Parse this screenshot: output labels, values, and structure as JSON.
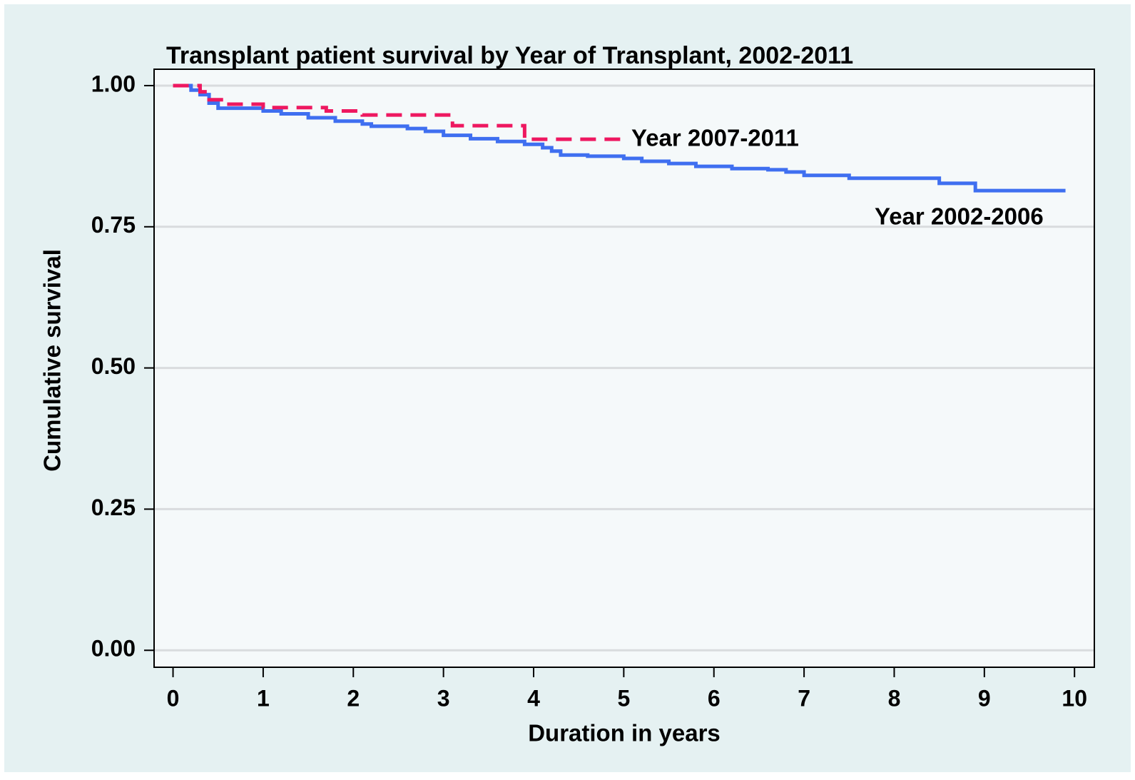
{
  "chart_data": {
    "type": "step-line",
    "title": "Transplant patient survival by Year of Transplant, 2002-2011",
    "xlabel": "Duration in years",
    "ylabel": "Cumulative survival",
    "xlim": [
      -0.21,
      10.22
    ],
    "ylim": [
      -0.03,
      1.029
    ],
    "xticks": [
      0,
      1,
      2,
      3,
      4,
      5,
      6,
      7,
      8,
      9,
      10
    ],
    "yticks": [
      {
        "value": 0,
        "label": "0.00"
      },
      {
        "value": 0.25,
        "label": "0.25"
      },
      {
        "value": 0.5,
        "label": "0.50"
      },
      {
        "value": 0.75,
        "label": "0.75"
      },
      {
        "value": 1,
        "label": "1.00"
      }
    ],
    "grid": true,
    "series": [
      {
        "name": "Year 2002-2006",
        "color": "#3f6ff0",
        "dash": false,
        "x": [
          0,
          0.2,
          0.3,
          0.4,
          0.5,
          1.0,
          1.2,
          1.5,
          1.8,
          2.1,
          2.2,
          2.6,
          2.8,
          3.0,
          3.3,
          3.6,
          3.9,
          4.1,
          4.2,
          4.3,
          4.6,
          5.0,
          5.2,
          5.5,
          5.8,
          6.2,
          6.6,
          6.8,
          7.0,
          7.5,
          8.5,
          8.9,
          9.9
        ],
        "values": [
          1.0,
          0.992,
          0.984,
          0.969,
          0.96,
          0.955,
          0.95,
          0.943,
          0.937,
          0.932,
          0.928,
          0.924,
          0.919,
          0.912,
          0.906,
          0.901,
          0.896,
          0.89,
          0.884,
          0.877,
          0.875,
          0.871,
          0.866,
          0.862,
          0.857,
          0.853,
          0.851,
          0.847,
          0.841,
          0.836,
          0.827,
          0.814,
          0.814
        ]
      },
      {
        "name": "Year 2007-2011",
        "color": "#ee1860",
        "dash": true,
        "x": [
          0,
          0.3,
          0.4,
          0.6,
          1.0,
          1.7,
          2.1,
          3.1,
          3.9,
          5.0
        ],
        "values": [
          1.0,
          0.989,
          0.975,
          0.967,
          0.961,
          0.955,
          0.948,
          0.929,
          0.905,
          0.905
        ]
      }
    ]
  }
}
